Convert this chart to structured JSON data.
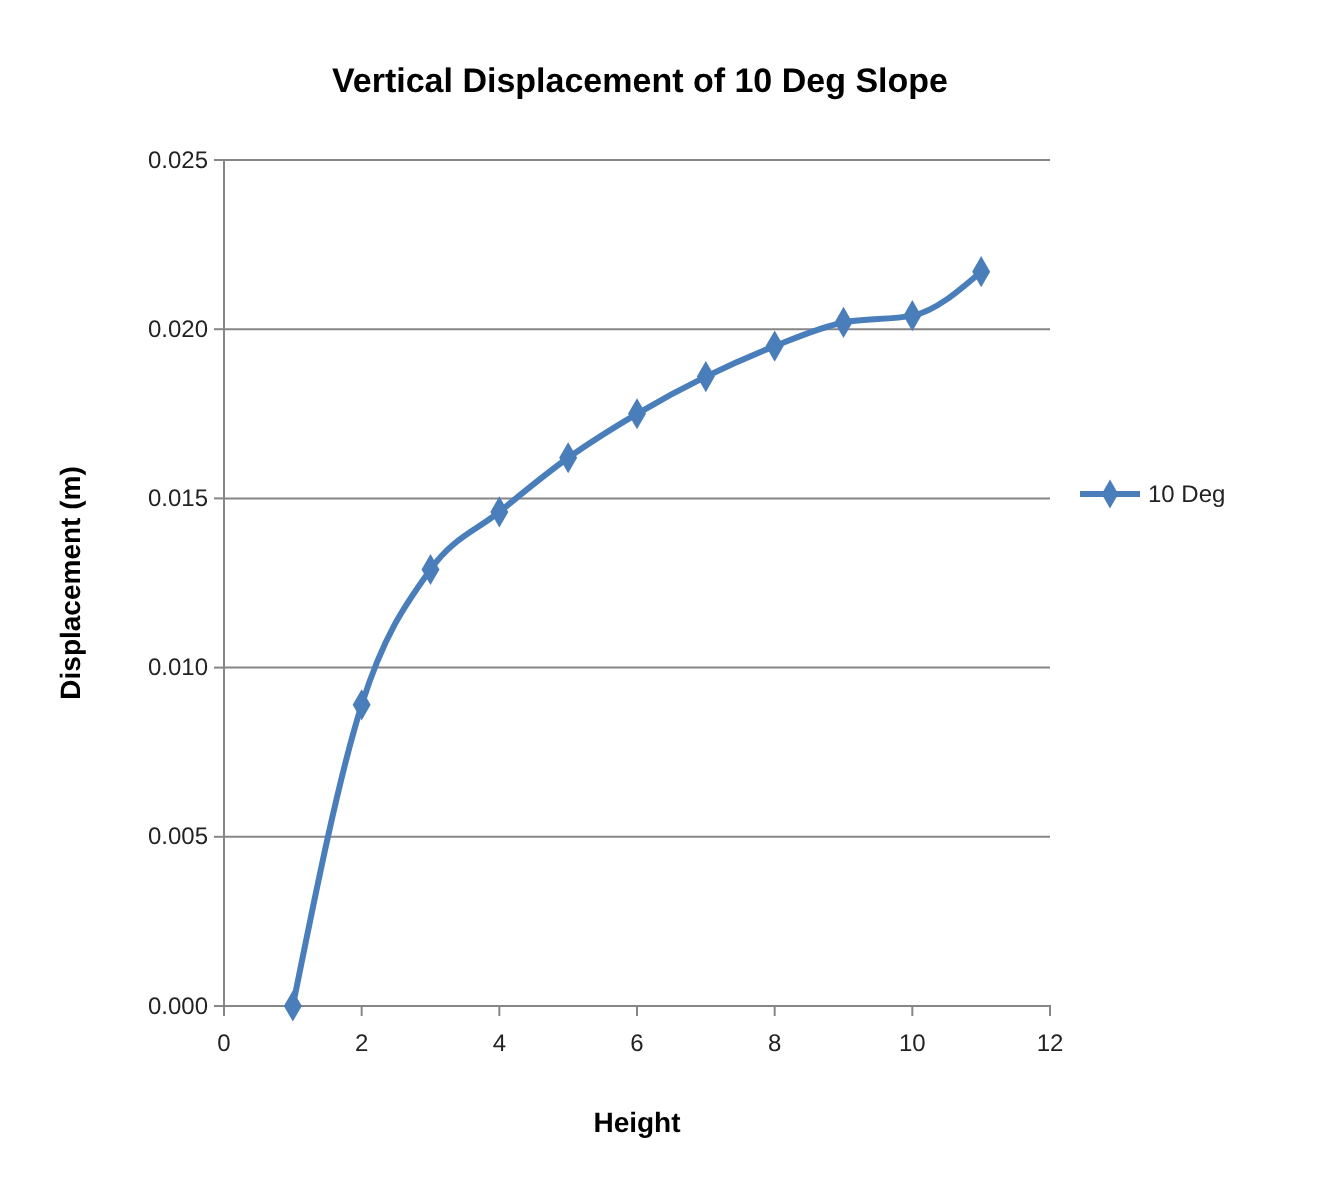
{
  "chart_data": {
    "type": "line",
    "title": "Vertical Displacement of 10 Deg Slope",
    "xlabel": "Height",
    "ylabel": "Displacement  (m)",
    "x": [
      1,
      2,
      3,
      4,
      5,
      6,
      7,
      8,
      9,
      10,
      11
    ],
    "series": [
      {
        "name": "10 Deg",
        "color": "#4a7ebb",
        "values": [
          0,
          0.0089,
          0.0129,
          0.0146,
          0.0162,
          0.0175,
          0.0186,
          0.0195,
          0.0202,
          0.0204,
          0.0217
        ]
      }
    ],
    "xlim": [
      0,
      12
    ],
    "xticks": [
      0,
      2,
      4,
      6,
      8,
      10,
      12
    ],
    "ylim": [
      0,
      0.025
    ],
    "yticks": [
      {
        "value": 0,
        "label": "0.000"
      },
      {
        "value": 0.005,
        "label": "0.005"
      },
      {
        "value": 0.01,
        "label": "0.010"
      },
      {
        "value": 0.015,
        "label": "0.015"
      },
      {
        "value": 0.02,
        "label": "0.020"
      },
      {
        "value": 0.025,
        "label": "0.025"
      }
    ],
    "grid": "y",
    "legend": "right",
    "marker": "diamond",
    "line_style": "solid"
  }
}
